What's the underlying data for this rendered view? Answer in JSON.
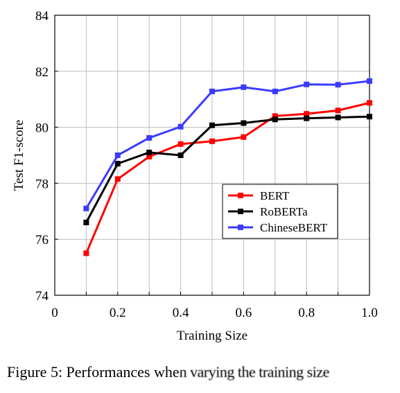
{
  "chart_data": {
    "type": "line",
    "xlabel": "Training Size",
    "ylabel": "Test F1-score",
    "xlim": [
      0,
      1.0
    ],
    "ylim": [
      74,
      84
    ],
    "xticks": [
      "0",
      "0.2",
      "0.4",
      "0.6",
      "0.8",
      "1.0"
    ],
    "yticks": [
      "74",
      "76",
      "78",
      "80",
      "82",
      "84"
    ],
    "grid": true,
    "legend_position": "bottom-right",
    "x": [
      0.1,
      0.2,
      0.3,
      0.4,
      0.5,
      0.6,
      0.7,
      0.8,
      0.9,
      1.0
    ],
    "series": [
      {
        "name": "BERT",
        "color": "#ff0000",
        "values": [
          75.5,
          78.15,
          78.95,
          79.4,
          79.5,
          79.65,
          80.4,
          80.48,
          80.6,
          80.87
        ]
      },
      {
        "name": "RoBERTa",
        "color": "#000000",
        "values": [
          76.6,
          78.7,
          79.1,
          79.0,
          80.07,
          80.15,
          80.28,
          80.32,
          80.35,
          80.38
        ]
      },
      {
        "name": "ChineseBERT",
        "color": "#3b3bff",
        "values": [
          77.1,
          79.0,
          79.62,
          80.02,
          81.28,
          81.43,
          81.28,
          81.53,
          81.52,
          81.65
        ]
      }
    ]
  },
  "caption": {
    "prefix": "Figure 5: Performances whe",
    "garbled": "n varying the training size"
  }
}
